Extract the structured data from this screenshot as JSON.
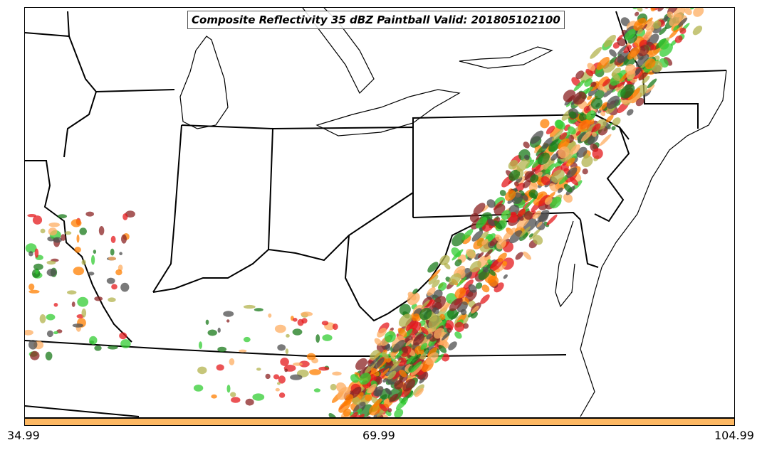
{
  "title": "Composite Reflectivity 35 dBZ Paintball Valid: 201805102100",
  "colorbar": {
    "color": "#fdb863",
    "ticks": [
      "34.99",
      "69.99",
      "104.99"
    ]
  },
  "map": {
    "region": "Eastern United States (Great Lakes to Mid-Atlantic)",
    "boundary_color": "#000000",
    "member_colors": [
      "#e41a1c",
      "#ff7f00",
      "#fdae61",
      "#33cc33",
      "#1a7a1a",
      "#8b2323",
      "#b3b34d",
      "#4d4d4d"
    ]
  }
}
